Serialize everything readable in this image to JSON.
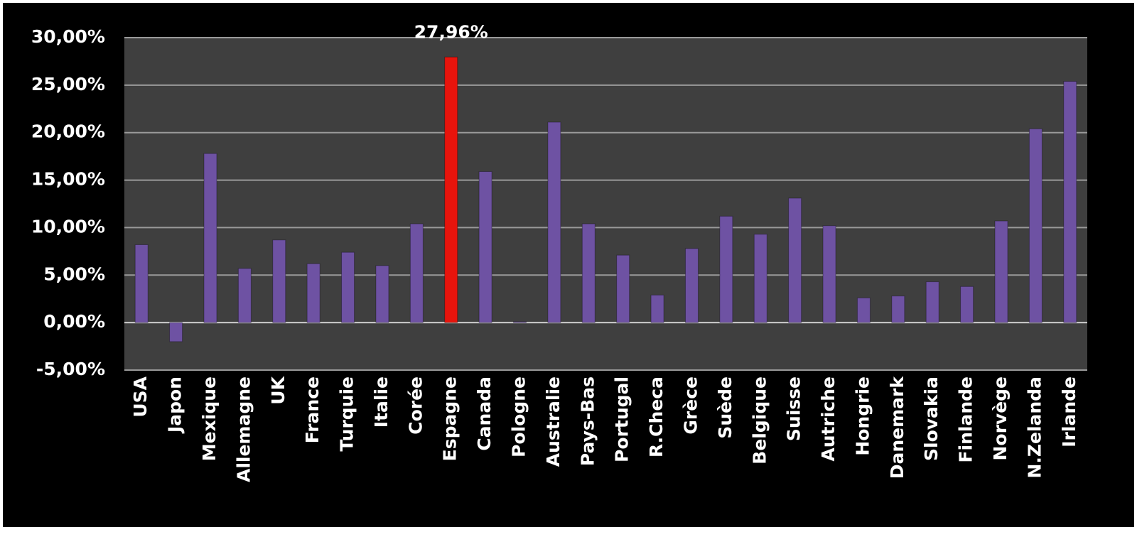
{
  "chart_data": {
    "type": "bar",
    "categories": [
      "USA",
      "Japon",
      "Mexique",
      "Allemagne",
      "UK",
      "France",
      "Turquie",
      "Italie",
      "Corée",
      "Espagne",
      "Canada",
      "Pologne",
      "Australie",
      "Pays-Bas",
      "Portugal",
      "R.Checa",
      "Grèce",
      "Suède",
      "Belgique",
      "Suisse",
      "Autriche",
      "Hongrie",
      "Danemark",
      "Slovakia",
      "Finlande",
      "Norvège",
      "N.Zelanda",
      "Irlande"
    ],
    "values": [
      8.2,
      -2.0,
      17.8,
      5.7,
      8.7,
      6.2,
      7.4,
      6.0,
      10.4,
      27.96,
      15.9,
      0.1,
      21.1,
      10.4,
      7.1,
      2.9,
      7.8,
      11.2,
      9.3,
      13.1,
      10.2,
      2.6,
      2.8,
      4.3,
      3.8,
      10.7,
      20.4,
      25.4
    ],
    "value_labels": [
      null,
      null,
      null,
      null,
      null,
      null,
      null,
      null,
      null,
      "27,96%",
      null,
      null,
      null,
      null,
      null,
      null,
      null,
      null,
      null,
      null,
      null,
      null,
      null,
      null,
      null,
      null,
      null,
      null
    ],
    "colors": [
      "#6e52a3",
      "#6e52a3",
      "#6e52a3",
      "#6e52a3",
      "#6e52a3",
      "#6e52a3",
      "#6e52a3",
      "#6e52a3",
      "#6e52a3",
      "#e8140c",
      "#6e52a3",
      "#6e52a3",
      "#6e52a3",
      "#6e52a3",
      "#6e52a3",
      "#6e52a3",
      "#6e52a3",
      "#6e52a3",
      "#6e52a3",
      "#6e52a3",
      "#6e52a3",
      "#6e52a3",
      "#6e52a3",
      "#6e52a3",
      "#6e52a3",
      "#6e52a3",
      "#6e52a3",
      "#6e52a3"
    ],
    "ylim": [
      -5,
      30
    ],
    "yticks": [
      {
        "value": -5,
        "label": "-5,00%"
      },
      {
        "value": 0,
        "label": "0,00%"
      },
      {
        "value": 5,
        "label": "5,00%"
      },
      {
        "value": 10,
        "label": "10,00%"
      },
      {
        "value": 15,
        "label": "15,00%"
      },
      {
        "value": 20,
        "label": "20,00%"
      },
      {
        "value": 25,
        "label": "25,00%"
      },
      {
        "value": 30,
        "label": "30,00%"
      }
    ],
    "grid": true
  }
}
